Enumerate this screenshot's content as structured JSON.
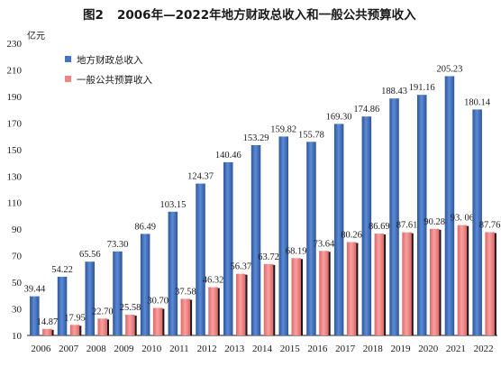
{
  "chart_data": {
    "type": "bar",
    "figure_label": "图2",
    "title": "2006年—2022年地方财政总收入和一般公共预算收入",
    "unit": "亿元",
    "categories": [
      "2006",
      "2007",
      "2008",
      "2009",
      "2010",
      "2011",
      "2012",
      "2013",
      "2014",
      "2015",
      "2016",
      "2017",
      "2018",
      "2019",
      "2020",
      "2021",
      "2022"
    ],
    "series": [
      {
        "name": "地方财政总收入",
        "color": "#4472c4",
        "values": [
          39.44,
          54.22,
          65.56,
          73.3,
          86.49,
          103.15,
          124.37,
          140.46,
          153.29,
          159.82,
          155.78,
          169.3,
          174.86,
          188.43,
          191.16,
          205.23,
          180.14
        ],
        "labels": [
          "39.44",
          "54.22",
          "65.56",
          "73.30",
          "86.49",
          "103.15",
          "124.37",
          "140.46",
          "153.29",
          "159.82",
          "155.78",
          "169.30",
          "174.86",
          "188.43",
          "191.16",
          "205.23",
          "180.14"
        ]
      },
      {
        "name": "一般公共预算收入",
        "color": "#f08585",
        "values": [
          14.87,
          17.95,
          22.7,
          25.58,
          30.7,
          37.58,
          46.32,
          56.37,
          63.72,
          68.19,
          73.64,
          80.26,
          86.69,
          87.61,
          90.28,
          93.06,
          87.76
        ],
        "labels": [
          "14.87",
          "17.95",
          "22.70",
          "25.58",
          "30.70",
          "37.58",
          "46.32",
          "56.37",
          "63.72",
          "68.19",
          "73.64",
          "80.26",
          "86.69",
          "87.61",
          "90.28",
          "93. 06",
          "87.76"
        ]
      }
    ],
    "yticks": [
      10,
      30,
      50,
      70,
      90,
      110,
      130,
      150,
      170,
      190,
      210,
      230
    ],
    "ylim": [
      10,
      230
    ],
    "legend_position": "top-left",
    "grid": false
  }
}
